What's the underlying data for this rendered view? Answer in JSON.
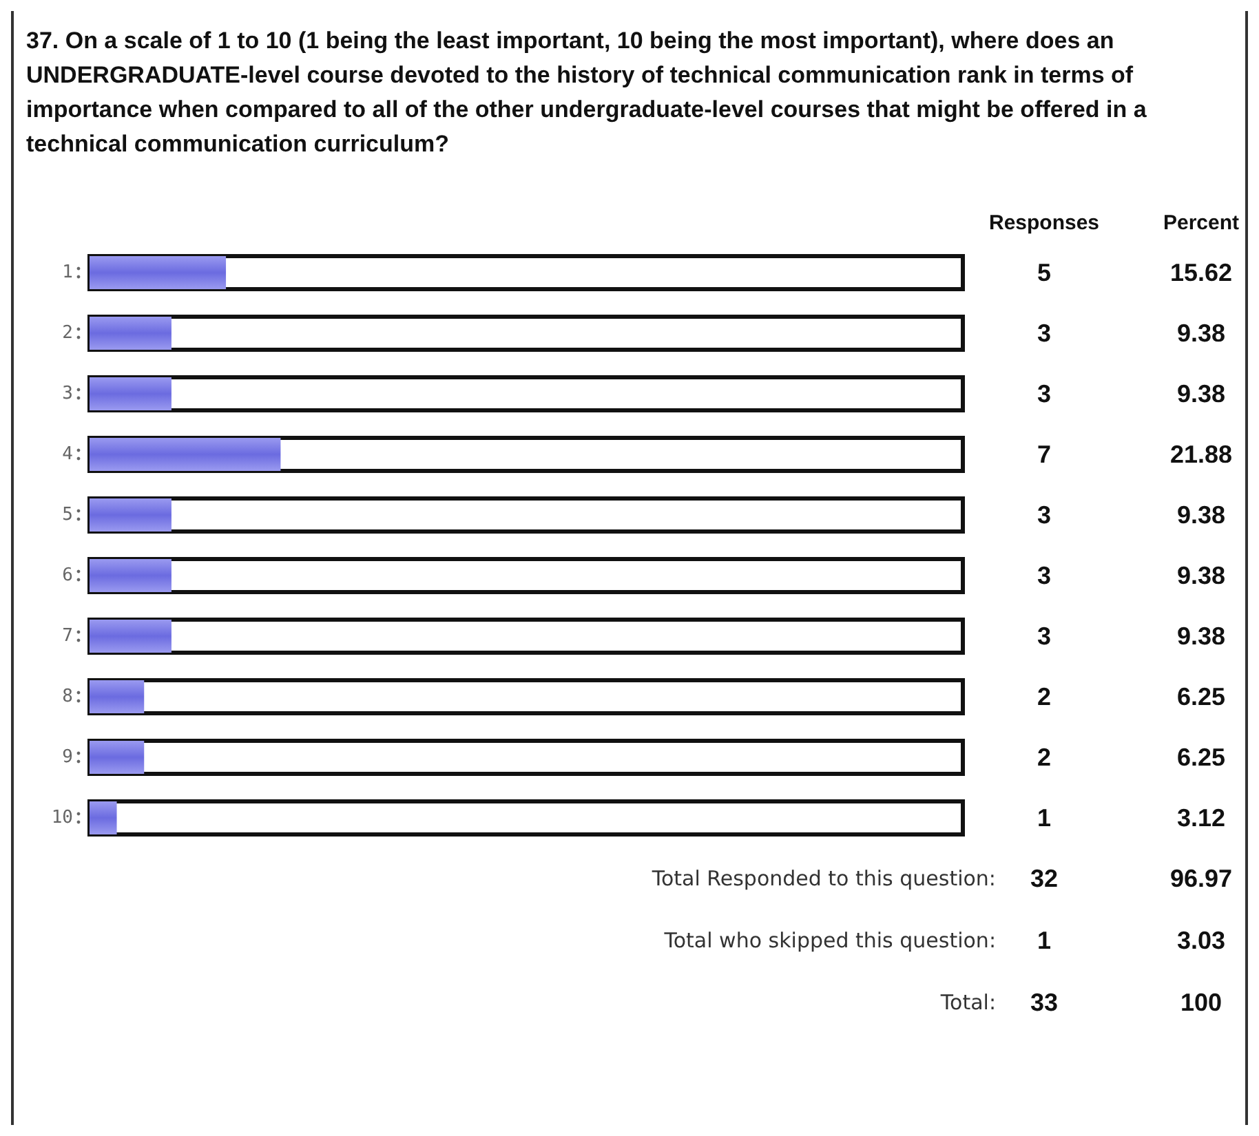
{
  "chart_data": {
    "type": "bar",
    "orientation": "horizontal",
    "title": "37. On a scale of 1 to 10 (1 being the least important, 10 being the most important), where does an UNDERGRADUATE-level course devoted to the history of technical communication rank in terms of importance when compared to all of the other undergraduate-level courses that might be offered in a technical communication curriculum?",
    "categories": [
      "1",
      "2",
      "3",
      "4",
      "5",
      "6",
      "7",
      "8",
      "9",
      "10"
    ],
    "values": [
      15.62,
      9.38,
      9.38,
      21.88,
      9.38,
      9.38,
      9.38,
      6.25,
      6.25,
      3.12
    ],
    "color": "#6b6be0",
    "xlim": [
      0,
      100
    ],
    "tick_labels": "y",
    "data_labels": true,
    "annotations": [
      "Responses",
      "Percent",
      "5",
      "3",
      "3",
      "7",
      "3",
      "3",
      "3",
      "2",
      "2",
      "1",
      "Total Responded to this question:",
      "32",
      "96.97",
      "Total who skipped this question:",
      "1",
      "3.03",
      "Total:",
      "33",
      "100"
    ]
  }
}
